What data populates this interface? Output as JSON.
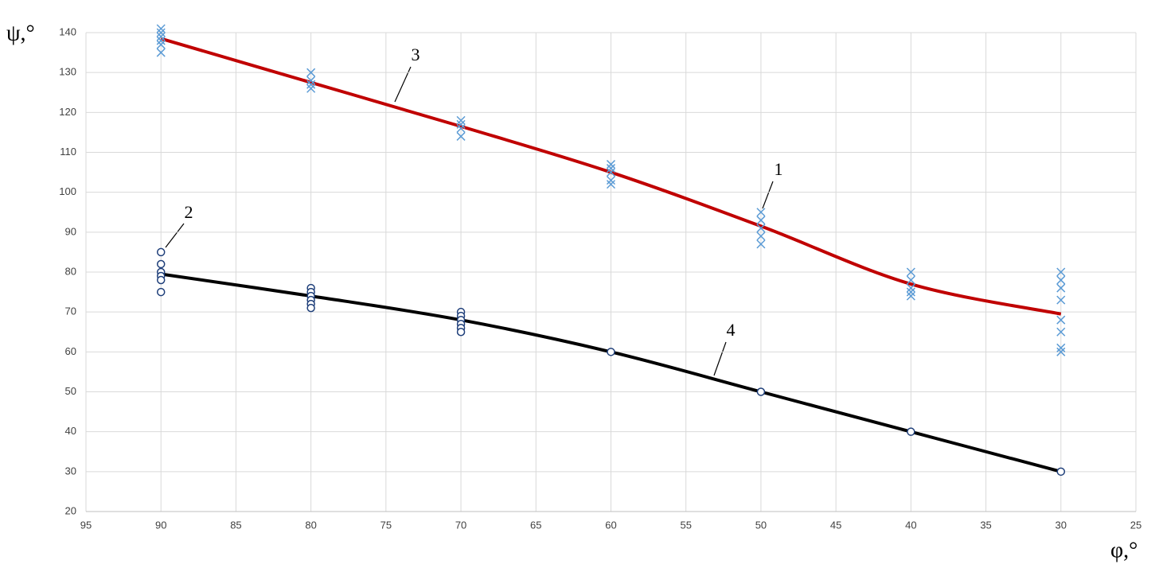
{
  "chart_data": {
    "type": "scatter",
    "y_label": "ψ,°",
    "x_label": "φ,°",
    "xlim": [
      95,
      25
    ],
    "xticks": [
      95,
      90,
      85,
      80,
      75,
      70,
      65,
      60,
      55,
      50,
      45,
      40,
      35,
      30,
      25
    ],
    "ylim": [
      20,
      140
    ],
    "yticks": [
      20,
      30,
      40,
      50,
      60,
      70,
      80,
      90,
      100,
      110,
      120,
      130,
      140
    ],
    "grid": true,
    "series": [
      {
        "name": "1",
        "kind": "scatter",
        "marker": "x",
        "color": "#5b9bd5",
        "x": [
          90,
          90,
          90,
          90,
          90,
          90,
          80,
          80,
          80,
          80,
          70,
          70,
          70,
          70,
          60,
          60,
          60,
          60,
          60,
          50,
          50,
          50,
          50,
          50,
          40,
          40,
          40,
          40,
          40,
          30,
          30,
          30,
          30,
          30,
          30,
          30,
          30
        ],
        "values": [
          141,
          140,
          139,
          138,
          137,
          135,
          130,
          128,
          127,
          126,
          118,
          117,
          116,
          114,
          107,
          106,
          105,
          103,
          102,
          95,
          93,
          91,
          89,
          87,
          80,
          78,
          76,
          75,
          74,
          80,
          78,
          76,
          73,
          68,
          65,
          61,
          60
        ]
      },
      {
        "name": "2",
        "kind": "scatter",
        "marker": "o",
        "color": "#1f3f7a",
        "x": [
          90,
          90,
          90,
          90,
          90,
          90,
          80,
          80,
          80,
          80,
          80,
          80,
          70,
          70,
          70,
          70,
          70,
          70,
          60,
          50,
          40,
          30
        ],
        "values": [
          85,
          82,
          80,
          79,
          78,
          75,
          76,
          75,
          74,
          73,
          72,
          71,
          70,
          69,
          68,
          67,
          66,
          65,
          60,
          50,
          40,
          30
        ]
      },
      {
        "name": "3",
        "kind": "line",
        "color": "#c00000",
        "x": [
          90,
          80,
          70,
          60,
          50,
          40,
          30
        ],
        "values": [
          138.5,
          127.5,
          116.5,
          105,
          91.5,
          77,
          69.5
        ]
      },
      {
        "name": "4",
        "kind": "line",
        "color": "#000000",
        "x": [
          90,
          80,
          70,
          60,
          50,
          40,
          30
        ],
        "values": [
          79.5,
          74,
          68,
          60,
          50,
          40,
          30
        ]
      }
    ]
  }
}
